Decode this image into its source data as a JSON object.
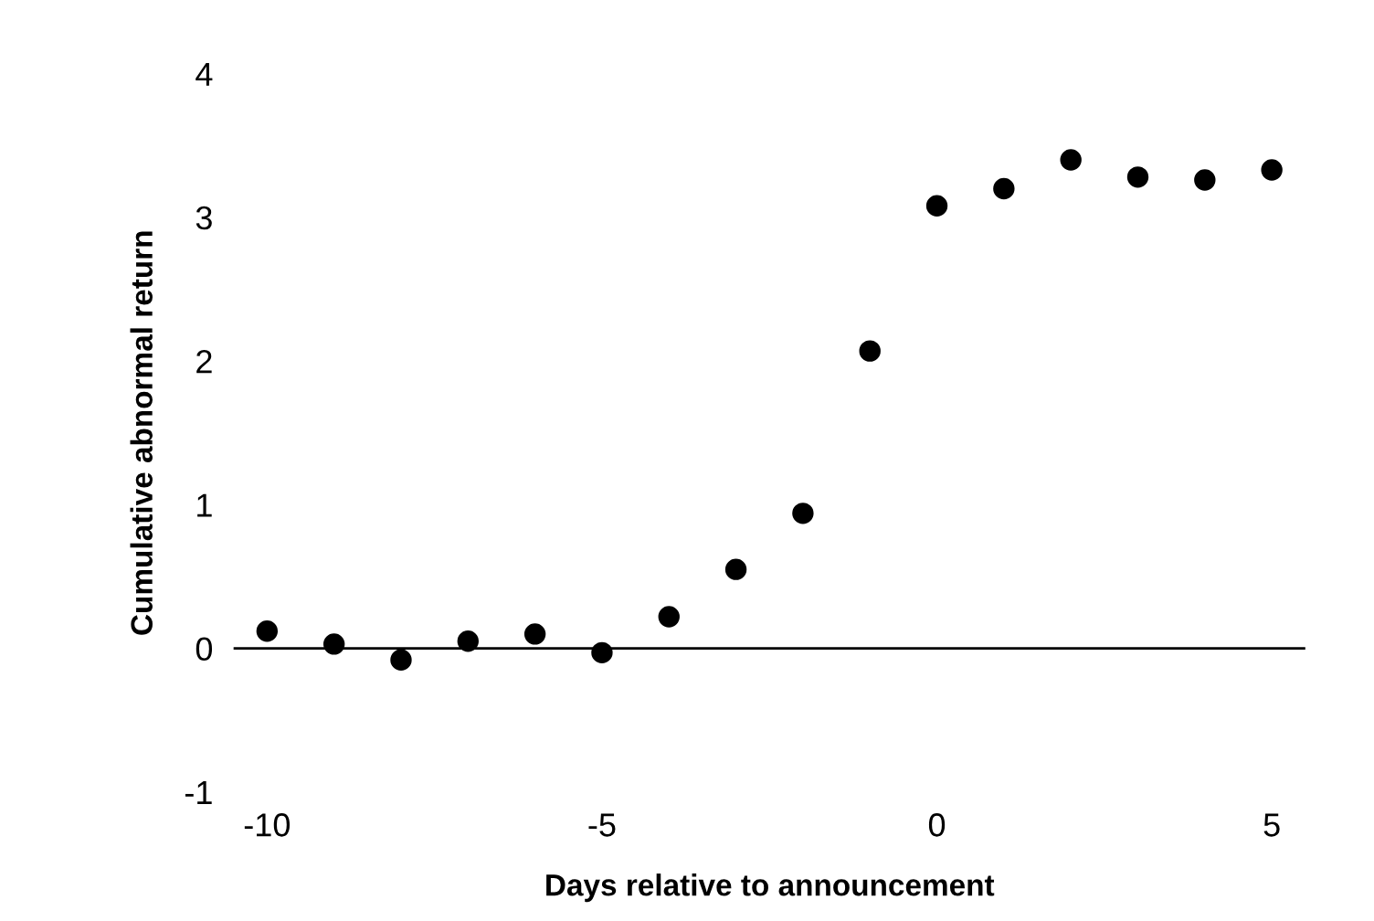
{
  "chart_data": {
    "type": "scatter",
    "xlabel": "Days relative to announcement",
    "ylabel": "Cumulative abnormal return",
    "x": [
      -10,
      -9,
      -8,
      -7,
      -6,
      -5,
      -4,
      -3,
      -2,
      -1,
      0,
      1,
      2,
      3,
      4,
      5
    ],
    "series": [
      {
        "color": "#000000",
        "values": [
          0.12,
          0.03,
          -0.08,
          0.05,
          0.1,
          -0.03,
          0.22,
          0.55,
          0.94,
          2.07,
          3.08,
          3.2,
          3.4,
          3.28,
          3.26,
          3.33
        ]
      }
    ],
    "xlim": [
      -10.5,
      5.5
    ],
    "ylim": [
      -1,
      4
    ],
    "xticks": [
      -10,
      -5,
      0,
      5
    ],
    "yticks": [
      -1,
      0,
      1,
      2,
      3,
      4
    ],
    "ref_lines": [
      {
        "axis": "y",
        "value": 0,
        "color": "#000000"
      }
    ],
    "marker": "circle",
    "grid": false,
    "legend": false
  }
}
